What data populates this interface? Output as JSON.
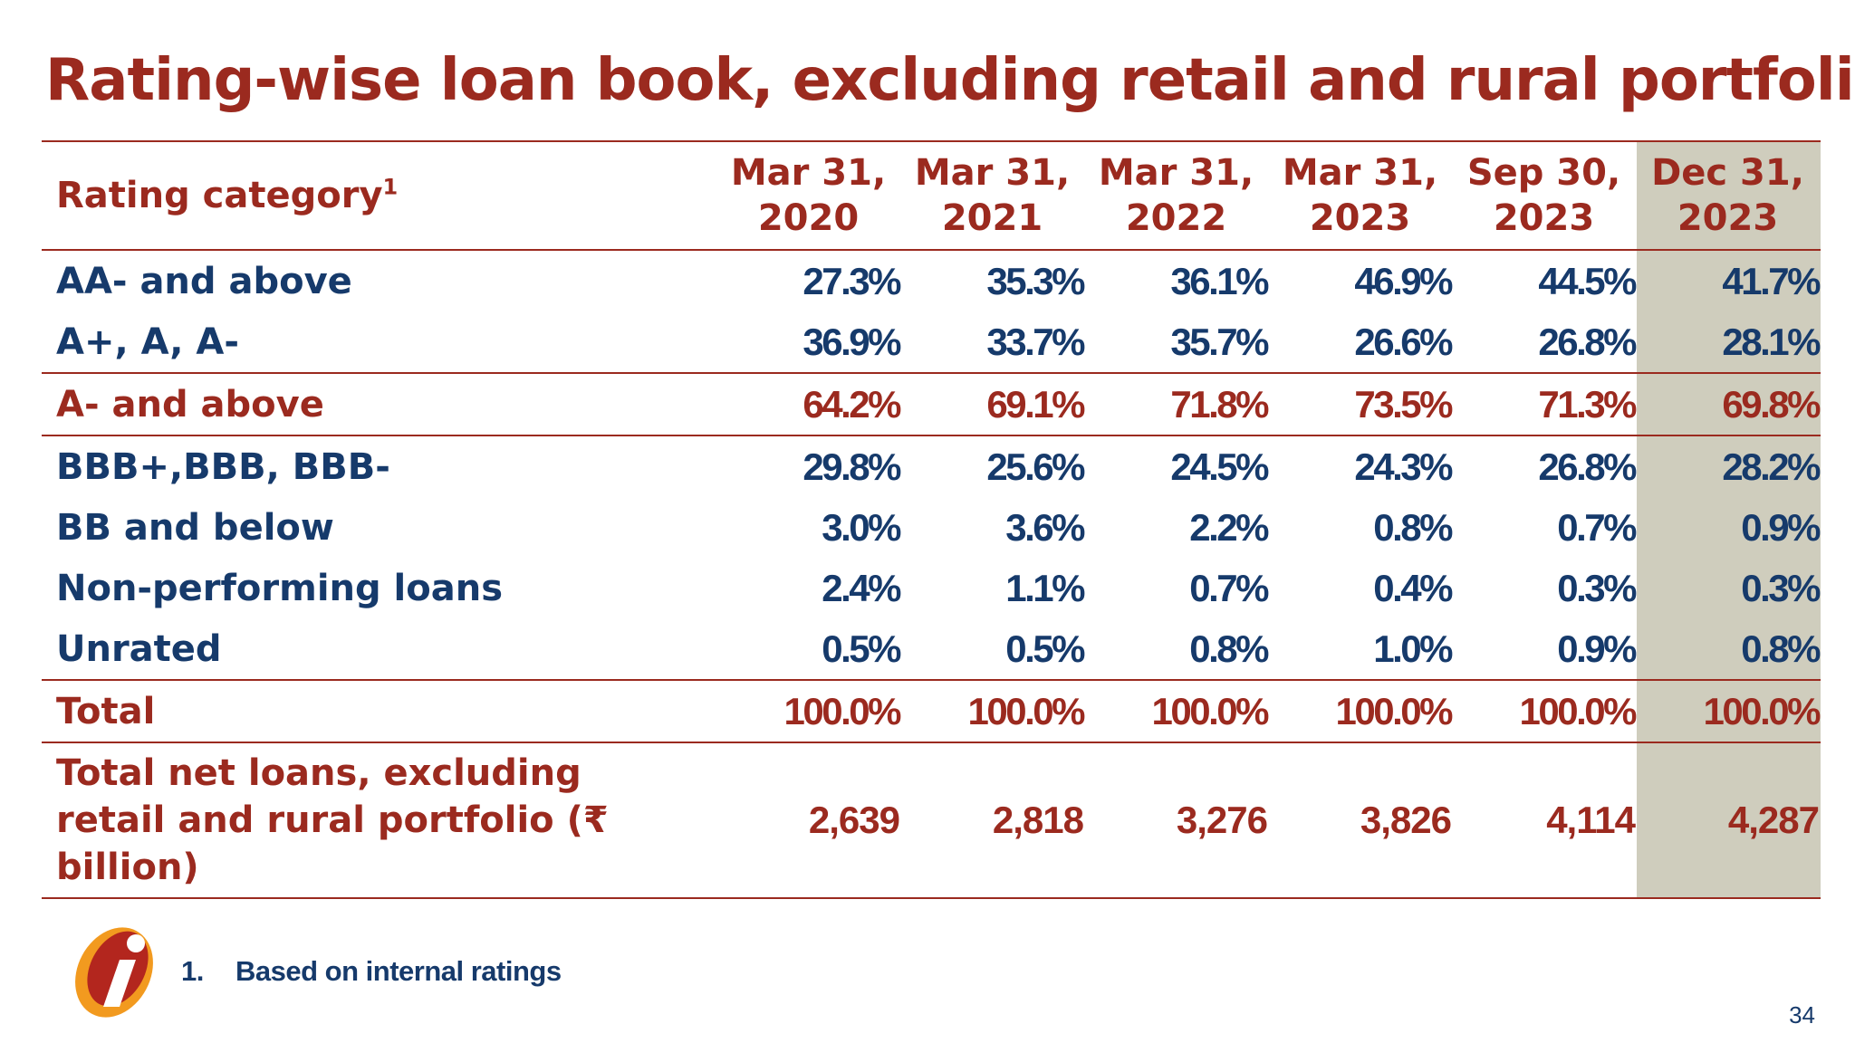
{
  "slide": {
    "title": "Rating-wise loan book, excluding retail and rural portfolio",
    "page_number": "34"
  },
  "table": {
    "label_header": "Rating category",
    "label_header_sup": "1",
    "columns": [
      {
        "line1": "Mar 31,",
        "line2": "2020"
      },
      {
        "line1": "Mar 31,",
        "line2": "2021"
      },
      {
        "line1": "Mar 31,",
        "line2": "2022"
      },
      {
        "line1": "Mar 31,",
        "line2": "2023"
      },
      {
        "line1": "Sep 30,",
        "line2": "2023"
      },
      {
        "line1": "Dec 31,",
        "line2": "2023"
      }
    ],
    "rows": [
      {
        "label": "AA- and above",
        "values": [
          "27.3%",
          "35.3%",
          "36.1%",
          "46.9%",
          "44.5%",
          "41.7%"
        ]
      },
      {
        "label": "A+, A, A-",
        "values": [
          "36.9%",
          "33.7%",
          "35.7%",
          "26.6%",
          "26.8%",
          "28.1%"
        ]
      },
      {
        "label": "A- and above",
        "values": [
          "64.2%",
          "69.1%",
          "71.8%",
          "73.5%",
          "71.3%",
          "69.8%"
        ]
      },
      {
        "label": "BBB+,BBB, BBB-",
        "values": [
          "29.8%",
          "25.6%",
          "24.5%",
          "24.3%",
          "26.8%",
          "28.2%"
        ]
      },
      {
        "label": "BB and below",
        "values": [
          "3.0%",
          "3.6%",
          "2.2%",
          "0.8%",
          "0.7%",
          "0.9%"
        ]
      },
      {
        "label": "Non-performing loans",
        "values": [
          "2.4%",
          "1.1%",
          "0.7%",
          "0.4%",
          "0.3%",
          "0.3%"
        ]
      },
      {
        "label": "Unrated",
        "values": [
          "0.5%",
          "0.5%",
          "0.8%",
          "1.0%",
          "0.9%",
          "0.8%"
        ]
      },
      {
        "label": "Total",
        "values": [
          "100.0%",
          "100.0%",
          "100.0%",
          "100.0%",
          "100.0%",
          "100.0%"
        ]
      },
      {
        "label_lines": [
          "Total net loans, excluding",
          "retail and rural portfolio (₹",
          "billion)"
        ],
        "values": [
          "2,639",
          "2,818",
          "3,276",
          "3,826",
          "4,114",
          "4,287"
        ]
      }
    ]
  },
  "footnote": {
    "number": "1.",
    "text": "Based on internal ratings"
  },
  "logo": {
    "letter": "i"
  },
  "colors": {
    "accent_red": "#9b2a1f",
    "text_blue": "#163a6b",
    "highlight_column": "#cfcdbd",
    "logo_orange": "#f29a1f"
  }
}
